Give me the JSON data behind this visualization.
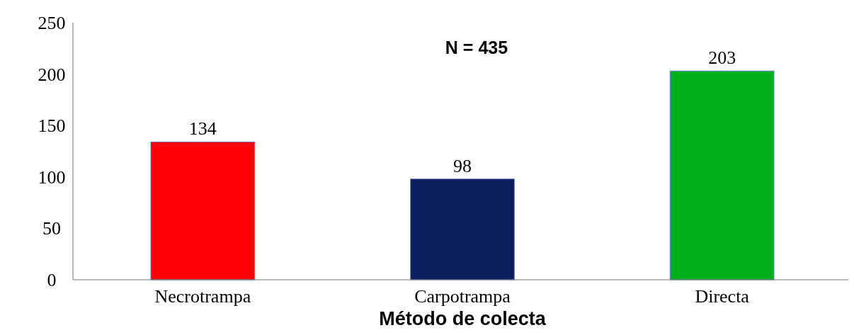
{
  "chart_data": {
    "type": "bar",
    "title": "N = 435",
    "xlabel": "Método de colecta",
    "categories": [
      "Necrotrampa",
      "Carpotrampa",
      "Directa"
    ],
    "values": [
      134,
      98,
      203
    ],
    "colors": [
      "#ff0000",
      "#0b1f5e",
      "#00b01c"
    ],
    "ylim": [
      0,
      250
    ],
    "yticks": [
      0,
      50,
      100,
      150,
      200,
      250
    ],
    "grid": false,
    "data_labels": true
  }
}
